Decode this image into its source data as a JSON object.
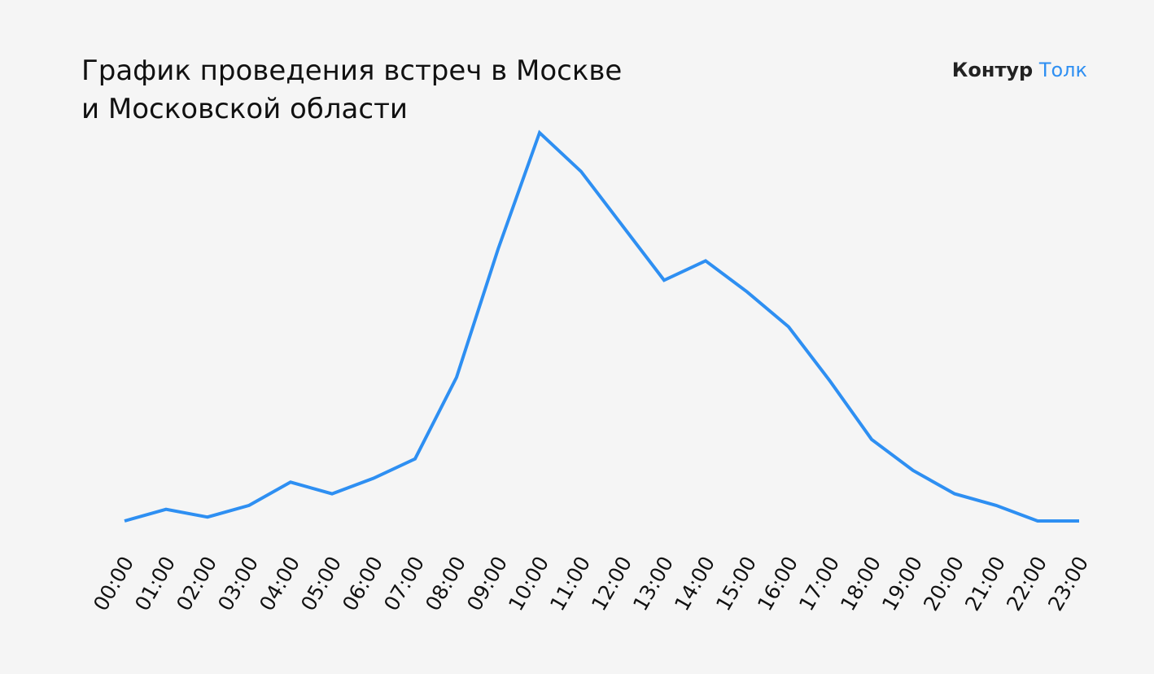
{
  "chart_data": {
    "type": "line",
    "title": [
      "График проведения встреч в Москве",
      "и Московской области"
    ],
    "logo": [
      "Контур",
      "Толк"
    ],
    "categories": [
      "00:00",
      "01:00",
      "02:00",
      "03:00",
      "04:00",
      "05:00",
      "06:00",
      "07:00",
      "08:00",
      "09:00",
      "10:00",
      "11:00",
      "12:00",
      "13:00",
      "14:00",
      "15:00",
      "16:00",
      "17:00",
      "18:00",
      "19:00",
      "20:00",
      "21:00",
      "22:00",
      "23:00"
    ],
    "series": [
      {
        "color": "#2e8ff2",
        "values": [
          0,
          3,
          1,
          4,
          10,
          7,
          11,
          16,
          37,
          70,
          100,
          90,
          76,
          62,
          67,
          59,
          50,
          36,
          21,
          13,
          7,
          4,
          0,
          0
        ]
      }
    ],
    "ylim": [
      0,
      100
    ]
  }
}
